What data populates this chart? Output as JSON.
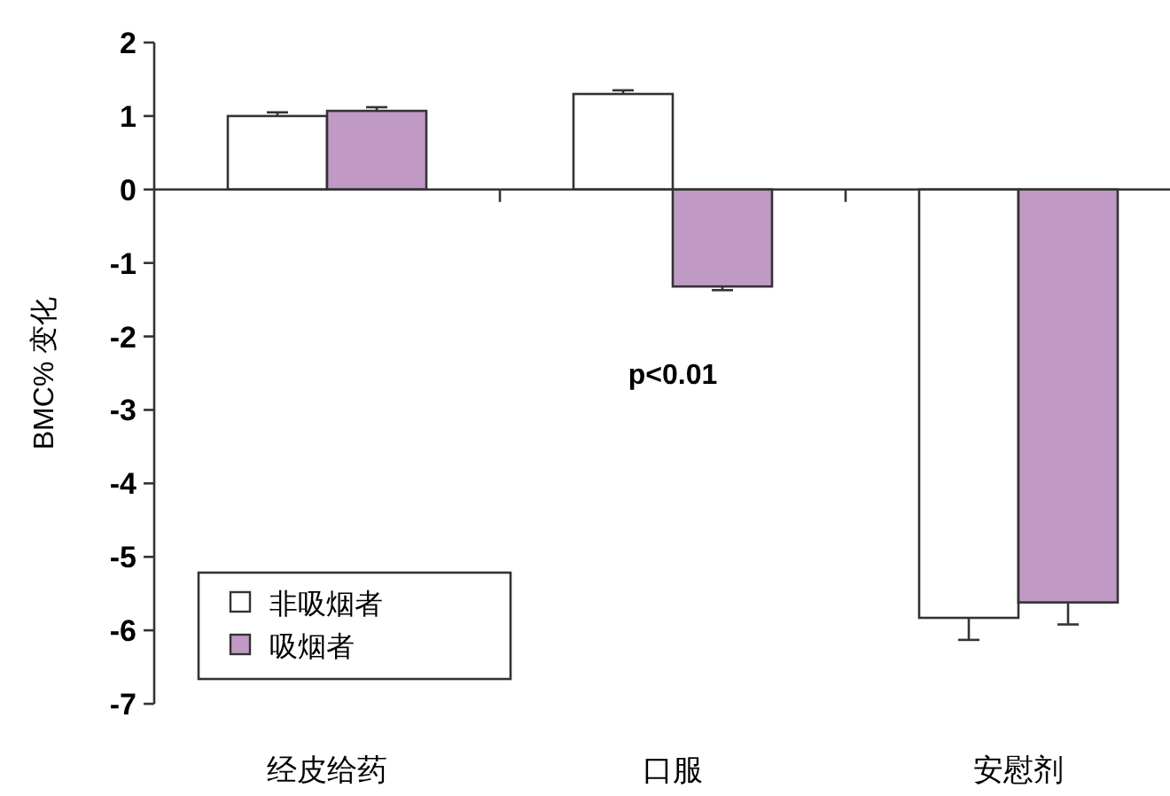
{
  "chart_data": {
    "type": "bar",
    "ylabel": "BMC% 变化",
    "categories": [
      "经皮给药",
      "口服",
      "安慰剂"
    ],
    "series": [
      {
        "name": "非吸烟者",
        "color": "#ffffff",
        "values": [
          1.0,
          1.3,
          -5.83
        ],
        "errors": [
          0.05,
          0.05,
          0.3
        ]
      },
      {
        "name": "吸烟者",
        "color": "#c09ac4",
        "values": [
          1.07,
          -1.32,
          -5.62
        ],
        "errors": [
          0.05,
          0.05,
          0.3
        ]
      }
    ],
    "ylim": [
      -7,
      2
    ],
    "yticks": [
      -7,
      -6,
      -5,
      -4,
      -3,
      -2,
      -1,
      0,
      1,
      2
    ],
    "annotations": [
      "p<0.01"
    ],
    "legend": "bottom left"
  }
}
